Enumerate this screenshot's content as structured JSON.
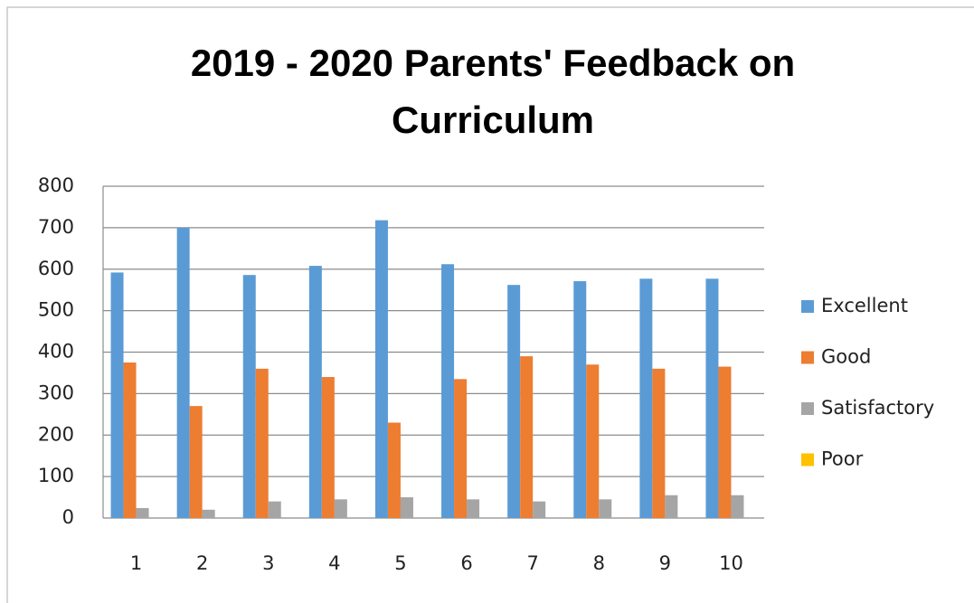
{
  "chart_data": {
    "type": "bar",
    "title": "2019 - 2020 Parents' Feedback on Curriculum",
    "categories": [
      "1",
      "2",
      "3",
      "4",
      "5",
      "6",
      "7",
      "8",
      "9",
      "10"
    ],
    "series": [
      {
        "name": "Excellent",
        "color": "#5b9bd5",
        "values": [
          592,
          700,
          586,
          608,
          718,
          612,
          562,
          571,
          577,
          577
        ]
      },
      {
        "name": "Good",
        "color": "#ed7d31",
        "values": [
          375,
          270,
          360,
          340,
          230,
          335,
          390,
          370,
          360,
          365
        ]
      },
      {
        "name": "Satisfactory",
        "color": "#a5a5a5",
        "values": [
          24,
          20,
          40,
          45,
          50,
          45,
          40,
          45,
          55,
          55
        ]
      },
      {
        "name": "Poor",
        "color": "#ffc000",
        "values": [
          0,
          0,
          0,
          0,
          0,
          0,
          0,
          0,
          0,
          0
        ]
      }
    ],
    "ylim": [
      0,
      800
    ],
    "yticks": [
      0,
      100,
      200,
      300,
      400,
      500,
      600,
      700,
      800
    ],
    "grid": true,
    "legend": "right"
  }
}
